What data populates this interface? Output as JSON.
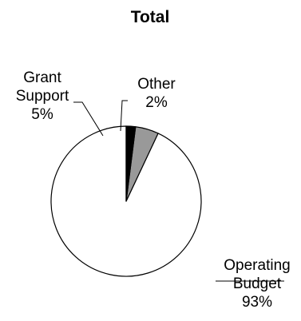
{
  "chart_data": {
    "type": "pie",
    "title": "Total",
    "slices": [
      {
        "label_lines": [
          "Operating",
          "Budget"
        ],
        "percent_label": "93%",
        "value": 93,
        "color": "#ffffff"
      },
      {
        "label_lines": [
          "Grant",
          "Support"
        ],
        "percent_label": "5%",
        "value": 5,
        "color": "#999999"
      },
      {
        "label_lines": [
          "Other"
        ],
        "percent_label": "2%",
        "value": 2,
        "color": "#000000"
      }
    ],
    "start_angle_deg": 0,
    "direction": "counterclockwise",
    "outline_color": "#000000"
  }
}
